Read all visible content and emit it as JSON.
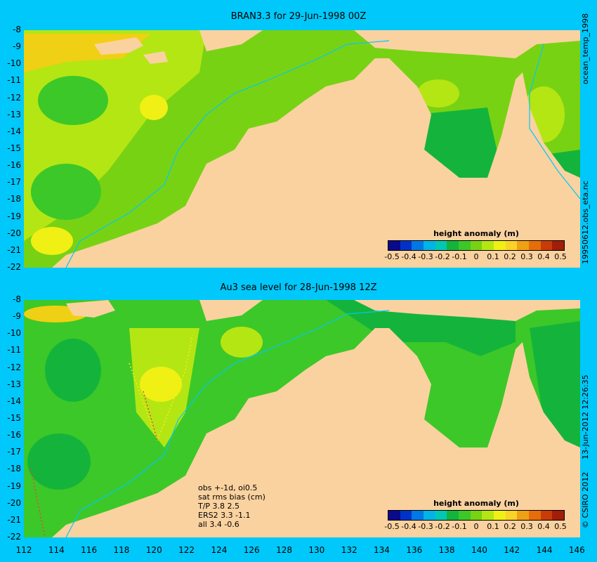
{
  "top_title": "BRAN3.3 for 29-Jun-1998 00Z",
  "bottom_title": "Au3 sea level  for 28-Jun-1998 12Z",
  "right_label_top": "ocean_temp_1998",
  "right_label_middle": "19950612.obs_eta.nc",
  "right_label_bottom_date": "13-Jun-2012 12:26:35",
  "right_label_bottom_copy": "© CSIRO 2012",
  "y_ticks": [
    "-8",
    "-9",
    "-10",
    "-11",
    "-12",
    "-13",
    "-14",
    "-15",
    "-16",
    "-17",
    "-18",
    "-19",
    "-20",
    "-21",
    "-22"
  ],
  "x_ticks": [
    "112",
    "114",
    "116",
    "118",
    "120",
    "122",
    "124",
    "126",
    "128",
    "130",
    "132",
    "134",
    "136",
    "138",
    "140",
    "142",
    "144",
    "146"
  ],
  "colorbar": {
    "title": "height anomaly  (m)",
    "ticks": [
      "-0.5",
      "-0.4",
      "-0.3",
      "-0.2",
      "-0.1",
      "0",
      "0.1",
      "0.2",
      "0.3",
      "0.4",
      "0.5"
    ],
    "colors": [
      "#0a0a8c",
      "#0032c8",
      "#0078e6",
      "#00b4e6",
      "#00c8b4",
      "#14b43c",
      "#3cc828",
      "#78d214",
      "#b4e614",
      "#f0f014",
      "#fad228",
      "#f0a014",
      "#e66e0a",
      "#c83c0a",
      "#a01e0a"
    ]
  },
  "stats": {
    "line1": "obs +-1d, oi0.5",
    "line2": "sat rms bias (cm)",
    "line3": "T/P  3.8 2.5",
    "line4": "ERS2 3.3 -1.1",
    "line5": "all 3.4 -0.6"
  },
  "colors": {
    "background": "#00c8fa",
    "land": "#fad2a0",
    "ocean_green": "#3cc828",
    "ocean_dark": "#14b43c",
    "ocean_light": "#b4e614",
    "ocean_yellow": "#f0f014",
    "ocean_orange": "#fad228",
    "shelf_line": "#00c8fa"
  }
}
